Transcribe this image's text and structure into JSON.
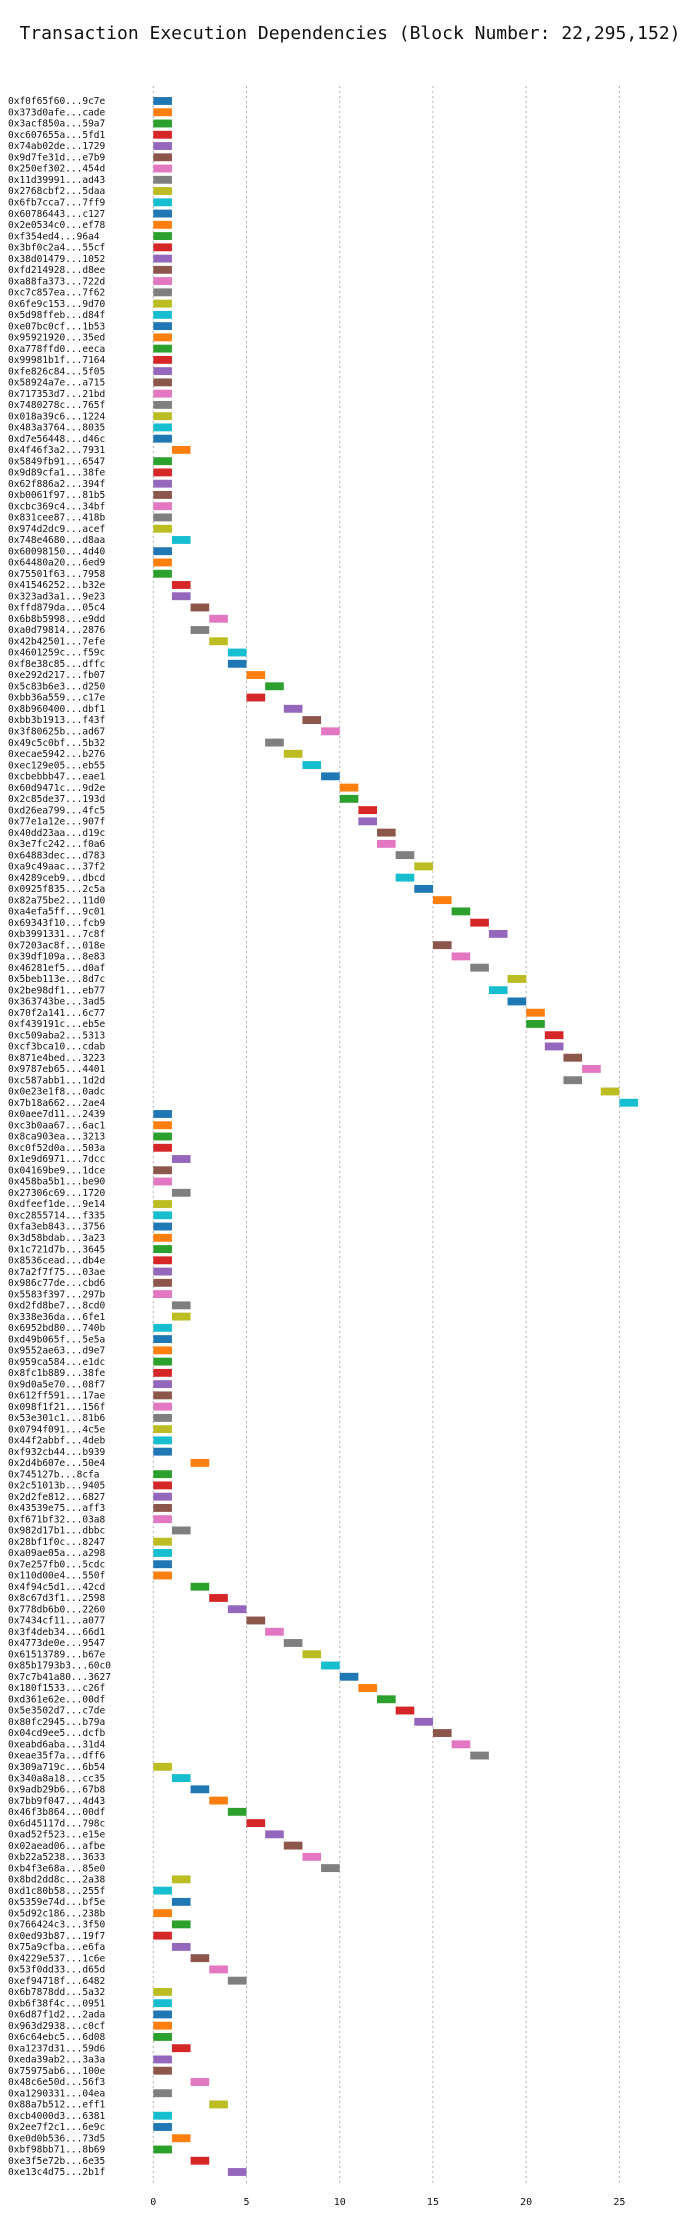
{
  "chart_data": {
    "type": "gantt",
    "title": "Transaction Execution Dependencies (Block Number: 22,295,152)",
    "xlabel": "",
    "ylabel": "",
    "xlim": [
      -2,
      27.5
    ],
    "xticks": [
      0,
      5,
      10,
      15,
      20,
      25
    ],
    "grid": {
      "x": true,
      "y": false,
      "style": "dotted"
    },
    "bar_width": 1,
    "palette": [
      "#1f77b4",
      "#ff7f0e",
      "#2ca02c",
      "#d62728",
      "#9467bd",
      "#8c564b",
      "#e377c2",
      "#7f7f7f",
      "#bcbd22",
      "#17becf"
    ],
    "tasks": [
      {
        "label": "0xf0f65f60...9c7e",
        "start": 0
      },
      {
        "label": "0x373d0afe...cade",
        "start": 0
      },
      {
        "label": "0x3acf850a...59a7",
        "start": 0
      },
      {
        "label": "0xc607655a...5fd1",
        "start": 0
      },
      {
        "label": "0x74ab02de...1729",
        "start": 0
      },
      {
        "label": "0x9d7fe31d...e7b9",
        "start": 0
      },
      {
        "label": "0x250ef302...454d",
        "start": 0
      },
      {
        "label": "0x11d39991...ad43",
        "start": 0
      },
      {
        "label": "0x2768cbf2...5daa",
        "start": 0
      },
      {
        "label": "0x6fb7cca7...7ff9",
        "start": 0
      },
      {
        "label": "0x60786443...c127",
        "start": 0
      },
      {
        "label": "0x2e0534c0...ef78",
        "start": 0
      },
      {
        "label": "0xf354ed4...96a4",
        "start": 0
      },
      {
        "label": "0x3bf0c2a4...55cf",
        "start": 0
      },
      {
        "label": "0x38d01479...1052",
        "start": 0
      },
      {
        "label": "0xfd214928...d8ee",
        "start": 0
      },
      {
        "label": "0xa88fa373...722d",
        "start": 0
      },
      {
        "label": "0xc7c857ea...7f62",
        "start": 0
      },
      {
        "label": "0x6fe9c153...9d70",
        "start": 0
      },
      {
        "label": "0x5d98ffeb...d84f",
        "start": 0
      },
      {
        "label": "0xe07bc0cf...1b53",
        "start": 0
      },
      {
        "label": "0x95921920...35ed",
        "start": 0
      },
      {
        "label": "0xa778ffd0...eeca",
        "start": 0
      },
      {
        "label": "0x99981b1f...7164",
        "start": 0
      },
      {
        "label": "0xfe826c84...5f05",
        "start": 0
      },
      {
        "label": "0x58924a7e...a715",
        "start": 0
      },
      {
        "label": "0x717353d7...21bd",
        "start": 0
      },
      {
        "label": "0x7480278c...765f",
        "start": 0
      },
      {
        "label": "0x018a39c6...1224",
        "start": 0
      },
      {
        "label": "0x483a3764...8035",
        "start": 0
      },
      {
        "label": "0xd7e56448...d46c",
        "start": 0
      },
      {
        "label": "0x4f46f3a2...7931",
        "start": 1
      },
      {
        "label": "0x5849fb91...6547",
        "start": 0
      },
      {
        "label": "0x9d89cfa1...38fe",
        "start": 0
      },
      {
        "label": "0x62f886a2...394f",
        "start": 0
      },
      {
        "label": "0xb0061f97...81b5",
        "start": 0
      },
      {
        "label": "0xcbc369c4...34bf",
        "start": 0
      },
      {
        "label": "0x831cee87...418b",
        "start": 0
      },
      {
        "label": "0x974d2dc9...acef",
        "start": 0
      },
      {
        "label": "0x748e4680...d8aa",
        "start": 1
      },
      {
        "label": "0x60098150...4d40",
        "start": 0
      },
      {
        "label": "0x64480a20...6ed9",
        "start": 0
      },
      {
        "label": "0x75501f63...7958",
        "start": 0
      },
      {
        "label": "0x41546252...b32e",
        "start": 1
      },
      {
        "label": "0x323ad3a1...9e23",
        "start": 1
      },
      {
        "label": "0xffd879da...05c4",
        "start": 2
      },
      {
        "label": "0x6b8b5998...e9dd",
        "start": 3
      },
      {
        "label": "0xa0d79814...2876",
        "start": 2
      },
      {
        "label": "0x42b42501...7efe",
        "start": 3
      },
      {
        "label": "0x4601259c...f59c",
        "start": 4
      },
      {
        "label": "0xf8e38c85...dffc",
        "start": 4
      },
      {
        "label": "0xe292d217...fb07",
        "start": 5
      },
      {
        "label": "0x5c83b6e3...d250",
        "start": 6
      },
      {
        "label": "0xbb36a559...c17e",
        "start": 5
      },
      {
        "label": "0x8b960400...dbf1",
        "start": 7
      },
      {
        "label": "0xbb3b1913...f43f",
        "start": 8
      },
      {
        "label": "0x3f80625b...ad67",
        "start": 9
      },
      {
        "label": "0x49c5c0bf...5b32",
        "start": 6
      },
      {
        "label": "0xecae5942...b276",
        "start": 7
      },
      {
        "label": "0xec129e05...eb55",
        "start": 8
      },
      {
        "label": "0xcbebbb47...eae1",
        "start": 9
      },
      {
        "label": "0x60d9471c...9d2e",
        "start": 10
      },
      {
        "label": "0x2c85de37...193d",
        "start": 10
      },
      {
        "label": "0xd26ea799...4fc5",
        "start": 11
      },
      {
        "label": "0x77e1a12e...907f",
        "start": 11
      },
      {
        "label": "0x40dd23aa...d19c",
        "start": 12
      },
      {
        "label": "0x3e7fc242...f0a6",
        "start": 12
      },
      {
        "label": "0x64883dec...d783",
        "start": 13
      },
      {
        "label": "0xa9c49aac...37f2",
        "start": 14
      },
      {
        "label": "0x4289ceb9...dbcd",
        "start": 13
      },
      {
        "label": "0x0925f835...2c5a",
        "start": 14
      },
      {
        "label": "0x82a75be2...11d0",
        "start": 15
      },
      {
        "label": "0xa4efa5ff...9c01",
        "start": 16
      },
      {
        "label": "0x69343f10...fcb9",
        "start": 17
      },
      {
        "label": "0xb3991331...7c8f",
        "start": 18
      },
      {
        "label": "0x7203ac8f...018e",
        "start": 15
      },
      {
        "label": "0x39df109a...8e83",
        "start": 16
      },
      {
        "label": "0x46281ef5...d0af",
        "start": 17
      },
      {
        "label": "0x5beb113e...8d7c",
        "start": 19
      },
      {
        "label": "0x2be98df1...eb77",
        "start": 18
      },
      {
        "label": "0x363743be...3ad5",
        "start": 19
      },
      {
        "label": "0x70f2a141...6c77",
        "start": 20
      },
      {
        "label": "0xf439191c...eb5e",
        "start": 20
      },
      {
        "label": "0xc509aba2...5313",
        "start": 21
      },
      {
        "label": "0xcf3bca10...cdab",
        "start": 21
      },
      {
        "label": "0x871e4bed...3223",
        "start": 22
      },
      {
        "label": "0x9787eb65...4401",
        "start": 23
      },
      {
        "label": "0xc587abb1...1d2d",
        "start": 22
      },
      {
        "label": "0x0e23e1f8...0adc",
        "start": 24
      },
      {
        "label": "0x7b18a662...2ae4",
        "start": 25
      },
      {
        "label": "0x0aee7d11...2439",
        "start": 0
      },
      {
        "label": "0xc3b0aa67...6ac1",
        "start": 0
      },
      {
        "label": "0x8ca903ea...3213",
        "start": 0
      },
      {
        "label": "0xc0f52d0a...503a",
        "start": 0
      },
      {
        "label": "0x1e9d6971...7dcc",
        "start": 1
      },
      {
        "label": "0x04169be9...1dce",
        "start": 0
      },
      {
        "label": "0x458ba5b1...be90",
        "start": 0
      },
      {
        "label": "0x27306c69...1720",
        "start": 1
      },
      {
        "label": "0xdfeef1de...9e14",
        "start": 0
      },
      {
        "label": "0xc2855714...f335",
        "start": 0
      },
      {
        "label": "0xfa3eb843...3756",
        "start": 0
      },
      {
        "label": "0x3d58bdab...3a23",
        "start": 0
      },
      {
        "label": "0x1c721d7b...3645",
        "start": 0
      },
      {
        "label": "0x8536cead...db4e",
        "start": 0
      },
      {
        "label": "0x7a2f7f75...03ae",
        "start": 0
      },
      {
        "label": "0x986c77de...cbd6",
        "start": 0
      },
      {
        "label": "0x5583f397...297b",
        "start": 0
      },
      {
        "label": "0xd2fd8be7...8cd0",
        "start": 1
      },
      {
        "label": "0x338e36da...6fe1",
        "start": 1
      },
      {
        "label": "0x6952bd80...740b",
        "start": 0
      },
      {
        "label": "0xd49b065f...5e5a",
        "start": 0
      },
      {
        "label": "0x9552ae63...d9e7",
        "start": 0
      },
      {
        "label": "0x959ca584...e1dc",
        "start": 0
      },
      {
        "label": "0x8fc1b889...38fe",
        "start": 0
      },
      {
        "label": "0x9d0a5e70...08f7",
        "start": 0
      },
      {
        "label": "0x612ff591...17ae",
        "start": 0
      },
      {
        "label": "0x098f1f21...156f",
        "start": 0
      },
      {
        "label": "0x53e301c1...81b6",
        "start": 0
      },
      {
        "label": "0x0794f091...4c5e",
        "start": 0
      },
      {
        "label": "0x44f2abbf...4deb",
        "start": 0
      },
      {
        "label": "0xf932cb44...b939",
        "start": 0
      },
      {
        "label": "0x2d4b607e...50e4",
        "start": 2
      },
      {
        "label": "0x745127b...8cfa",
        "start": 0
      },
      {
        "label": "0x2c51013b...9405",
        "start": 0
      },
      {
        "label": "0x2d2fe812...6827",
        "start": 0
      },
      {
        "label": "0x43539e75...aff3",
        "start": 0
      },
      {
        "label": "0xf671bf32...03a8",
        "start": 0
      },
      {
        "label": "0x982d17b1...dbbc",
        "start": 1
      },
      {
        "label": "0x28bf1f0c...8247",
        "start": 0
      },
      {
        "label": "0xa09ae05a...a298",
        "start": 0
      },
      {
        "label": "0x7e257fb0...5cdc",
        "start": 0
      },
      {
        "label": "0x110d00e4...550f",
        "start": 0
      },
      {
        "label": "0x4f94c5d1...42cd",
        "start": 2
      },
      {
        "label": "0x8c67d3f1...2598",
        "start": 3
      },
      {
        "label": "0x778db6b0...2260",
        "start": 4
      },
      {
        "label": "0x7434cf11...a077",
        "start": 5
      },
      {
        "label": "0x3f4deb34...66d1",
        "start": 6
      },
      {
        "label": "0x4773de0e...9547",
        "start": 7
      },
      {
        "label": "0x61513789...b67e",
        "start": 8
      },
      {
        "label": "0x85b1793b3...60c0",
        "start": 9
      },
      {
        "label": "0x7c7b41a80...3627",
        "start": 10
      },
      {
        "label": "0x180f1533...c26f",
        "start": 11
      },
      {
        "label": "0xd361e62e...00df",
        "start": 12
      },
      {
        "label": "0x5e3502d7...c7de",
        "start": 13
      },
      {
        "label": "0x80fc2945...b79a",
        "start": 14
      },
      {
        "label": "0x04cd9ee5...dcfb",
        "start": 15
      },
      {
        "label": "0xeabd6aba...31d4",
        "start": 16
      },
      {
        "label": "0xeae35f7a...dff6",
        "start": 17
      },
      {
        "label": "0x309a719c...6b54",
        "start": 0
      },
      {
        "label": "0x340a8a18...cc35",
        "start": 1
      },
      {
        "label": "0x9adb29b6...67b8",
        "start": 2
      },
      {
        "label": "0x7bb9f047...4d43",
        "start": 3
      },
      {
        "label": "0x46f3b864...00df",
        "start": 4
      },
      {
        "label": "0x6d45117d...798c",
        "start": 5
      },
      {
        "label": "0xad52f523...e15e",
        "start": 6
      },
      {
        "label": "0x02aead06...afbe",
        "start": 7
      },
      {
        "label": "0xb22a5238...3633",
        "start": 8
      },
      {
        "label": "0xb4f3e68a...85e0",
        "start": 9
      },
      {
        "label": "0x8bd2dd8c...2a38",
        "start": 1
      },
      {
        "label": "0xd1c80b58...255f",
        "start": 0
      },
      {
        "label": "0x5359e74d...bf5e",
        "start": 1
      },
      {
        "label": "0x5d92c186...238b",
        "start": 0
      },
      {
        "label": "0x766424c3...3f50",
        "start": 1
      },
      {
        "label": "0x0ed93b87...19f7",
        "start": 0
      },
      {
        "label": "0x75a9cfba...e6fa",
        "start": 1
      },
      {
        "label": "0x4229e537...1c6e",
        "start": 2
      },
      {
        "label": "0x53f0dd33...d65d",
        "start": 3
      },
      {
        "label": "0xef94718f...6482",
        "start": 4
      },
      {
        "label": "0x6b7878dd...5a32",
        "start": 0
      },
      {
        "label": "0xb6f38f4c...0951",
        "start": 0
      },
      {
        "label": "0x6d87f1d2...2ada",
        "start": 0
      },
      {
        "label": "0x963d2938...c0cf",
        "start": 0
      },
      {
        "label": "0x6c64ebc5...6d08",
        "start": 0
      },
      {
        "label": "0xa1237d31...59d6",
        "start": 1
      },
      {
        "label": "0xeda39ab2...3a3a",
        "start": 0
      },
      {
        "label": "0x75975ab6...100e",
        "start": 0
      },
      {
        "label": "0x48c6e50d...56f3",
        "start": 2
      },
      {
        "label": "0xa1290331...04ea",
        "start": 0
      },
      {
        "label": "0x88a7b512...eff1",
        "start": 3
      },
      {
        "label": "0xcb4000d3...6381",
        "start": 0
      },
      {
        "label": "0x2ee7f2c1...6e9c",
        "start": 0
      },
      {
        "label": "0xe0d0b536...73d5",
        "start": 1
      },
      {
        "label": "0xbf98bb71...8b69",
        "start": 0
      },
      {
        "label": "0xe3f5e72b...6e35",
        "start": 2
      },
      {
        "label": "0xe13c4d75...2b1f",
        "start": 4
      }
    ]
  }
}
